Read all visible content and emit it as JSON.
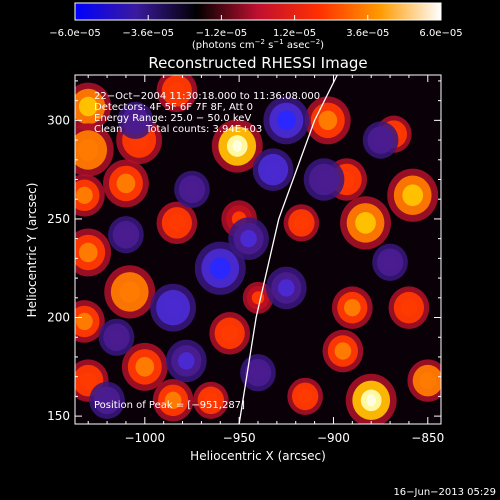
{
  "chart_data": {
    "type": "heatmap",
    "title": "Reconstructed RHESSI Image",
    "xlabel": "Heliocentric X (arcsec)",
    "ylabel": "Heliocentric Y (arcsec)",
    "xlim": [
      -1037,
      -843
    ],
    "ylim": [
      146,
      323
    ],
    "xticks": [
      -1000,
      -950,
      -900,
      -850
    ],
    "yticks": [
      150,
      200,
      250,
      300
    ],
    "xtick_labels": [
      "−1000",
      "−950",
      "−900",
      "−850"
    ],
    "ytick_labels": [
      "150",
      "200",
      "250",
      "300"
    ],
    "colorbar": {
      "range": [
        -6e-05,
        6e-05
      ],
      "ticks": [
        "−6.0e−05",
        "−3.6e−05",
        "−1.2e−05",
        "1.2e−05",
        "3.6e−05",
        "6.0e−05"
      ],
      "unit_prefix": "(photons cm",
      "unit_sup1": "−2",
      "unit_mid": " s",
      "unit_sup2": "−1",
      "unit_mid2": " asec",
      "unit_sup3": "−2",
      "unit_suffix": ")",
      "colors": [
        "#0000ff",
        "#3a1a9e",
        "#000000",
        "#c01030",
        "#ff3000",
        "#ff9a00",
        "#ffffff"
      ]
    },
    "annotations": {
      "line1": "22−Oct−2004 11:30:18.000 to 11:36:08.000",
      "line2": "Detectors: 4F 5F 6F 7F 8F, Att 0",
      "line3": "Energy Range: 25.0 − 50.0 keV",
      "line4_a": "Clean",
      "line4_b": "Total counts: 3.94E+03",
      "peak": "Position of Peak = [−951,287]"
    },
    "limb": [
      [
        -950,
        146
      ],
      [
        -941,
        200
      ],
      [
        -929,
        250
      ],
      [
        -910,
        300
      ],
      [
        -898,
        323
      ]
    ],
    "blobs": [
      {
        "x": -1030,
        "y": 307,
        "v": 0.75,
        "r": 9
      },
      {
        "x": -1030,
        "y": 285,
        "v": 0.65,
        "r": 10
      },
      {
        "x": -1032,
        "y": 262,
        "v": 0.55,
        "r": 8
      },
      {
        "x": -1010,
        "y": 268,
        "v": 0.6,
        "r": 9
      },
      {
        "x": -1030,
        "y": 233,
        "v": 0.6,
        "r": 9
      },
      {
        "x": -1032,
        "y": 198,
        "v": 0.55,
        "r": 8
      },
      {
        "x": -1030,
        "y": 168,
        "v": 0.45,
        "r": 8
      },
      {
        "x": -1008,
        "y": 213,
        "v": 0.7,
        "r": 10
      },
      {
        "x": -1000,
        "y": 175,
        "v": 0.55,
        "r": 9
      },
      {
        "x": -985,
        "y": 158,
        "v": 0.55,
        "r": 8
      },
      {
        "x": -1003,
        "y": 290,
        "v": 0.5,
        "r": 9
      },
      {
        "x": -983,
        "y": 315,
        "v": 0.5,
        "r": 8
      },
      {
        "x": -983,
        "y": 248,
        "v": 0.45,
        "r": 8
      },
      {
        "x": -951,
        "y": 287,
        "v": 1.0,
        "r": 10
      },
      {
        "x": -950,
        "y": 250,
        "v": 0.35,
        "r": 7
      },
      {
        "x": -955,
        "y": 192,
        "v": 0.45,
        "r": 8
      },
      {
        "x": -965,
        "y": 158,
        "v": 0.5,
        "r": 7
      },
      {
        "x": -940,
        "y": 210,
        "v": 0.35,
        "r": 6
      },
      {
        "x": -917,
        "y": 248,
        "v": 0.45,
        "r": 7
      },
      {
        "x": -903,
        "y": 300,
        "v": 0.6,
        "r": 9
      },
      {
        "x": -893,
        "y": 270,
        "v": 0.45,
        "r": 8
      },
      {
        "x": -883,
        "y": 248,
        "v": 0.85,
        "r": 10
      },
      {
        "x": -858,
        "y": 262,
        "v": 0.75,
        "r": 10
      },
      {
        "x": -868,
        "y": 293,
        "v": 0.45,
        "r": 7
      },
      {
        "x": -890,
        "y": 205,
        "v": 0.55,
        "r": 8
      },
      {
        "x": -895,
        "y": 183,
        "v": 0.55,
        "r": 8
      },
      {
        "x": -880,
        "y": 158,
        "v": 0.95,
        "r": 10
      },
      {
        "x": -850,
        "y": 168,
        "v": 0.65,
        "r": 8
      },
      {
        "x": -860,
        "y": 205,
        "v": 0.5,
        "r": 8
      },
      {
        "x": -915,
        "y": 160,
        "v": 0.5,
        "r": 7
      },
      {
        "x": -1010,
        "y": 242,
        "v": -0.5,
        "r": 7
      },
      {
        "x": -985,
        "y": 205,
        "v": -0.7,
        "r": 9
      },
      {
        "x": -978,
        "y": 178,
        "v": -0.55,
        "r": 8
      },
      {
        "x": -960,
        "y": 225,
        "v": -0.8,
        "r": 10
      },
      {
        "x": -945,
        "y": 240,
        "v": -0.6,
        "r": 8
      },
      {
        "x": -932,
        "y": 275,
        "v": -0.65,
        "r": 8
      },
      {
        "x": -925,
        "y": 300,
        "v": -0.75,
        "r": 9
      },
      {
        "x": -905,
        "y": 270,
        "v": -0.5,
        "r": 8
      },
      {
        "x": -925,
        "y": 215,
        "v": -0.55,
        "r": 8
      },
      {
        "x": -1015,
        "y": 190,
        "v": -0.45,
        "r": 7
      },
      {
        "x": -1005,
        "y": 300,
        "v": -0.35,
        "r": 7
      },
      {
        "x": -1020,
        "y": 158,
        "v": -0.4,
        "r": 7
      },
      {
        "x": -940,
        "y": 172,
        "v": -0.5,
        "r": 7
      },
      {
        "x": -870,
        "y": 228,
        "v": -0.45,
        "r": 7
      },
      {
        "x": -875,
        "y": 290,
        "v": -0.35,
        "r": 7
      },
      {
        "x": -975,
        "y": 265,
        "v": -0.45,
        "r": 7
      }
    ]
  },
  "footer": {
    "timestamp": "16−Jun−2013 05:29"
  }
}
